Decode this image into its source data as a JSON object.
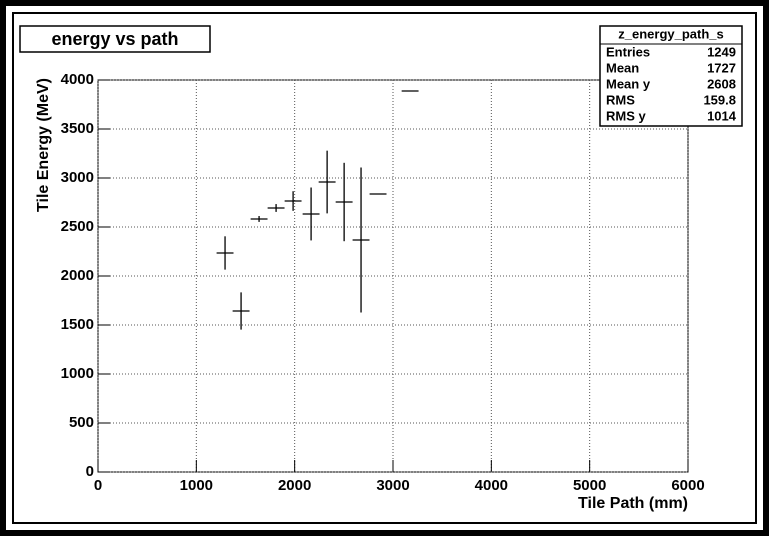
{
  "chart_data": {
    "type": "profile",
    "title": "energy vs path",
    "x_label": "Tile Path (mm)",
    "y_label": "Tile Energy (MeV)",
    "xlim": [
      0,
      6000
    ],
    "xticks": [
      0,
      1000,
      2000,
      3000,
      4000,
      5000,
      6000
    ],
    "ylim": [
      0,
      4000
    ],
    "yticks": [
      0,
      500,
      1000,
      1500,
      2000,
      2500,
      3000,
      3500,
      4000
    ],
    "grid": true,
    "series": [
      {
        "color": "#000000",
        "x": [
          1292,
          1455,
          1638,
          1811,
          1984,
          2167,
          2330,
          2503,
          2675,
          2848,
          3174
        ],
        "xerr": [
          86,
          86,
          86,
          86,
          86,
          86,
          86,
          86,
          86,
          86,
          86
        ],
        "values": [
          2235,
          1643,
          2582,
          2694,
          2765,
          2633,
          2959,
          2755,
          2367,
          2837,
          3888
        ],
        "yerr": [
          170,
          190,
          30,
          40,
          100,
          270,
          320,
          400,
          740,
          0,
          0
        ]
      }
    ],
    "stats": {
      "title": "z_energy_path_s",
      "rows": [
        [
          "Entries",
          1249
        ],
        [
          "Mean",
          1727
        ],
        [
          "Mean y",
          2608
        ],
        [
          "RMS",
          159.8
        ],
        [
          "RMS y",
          1014
        ]
      ]
    }
  }
}
